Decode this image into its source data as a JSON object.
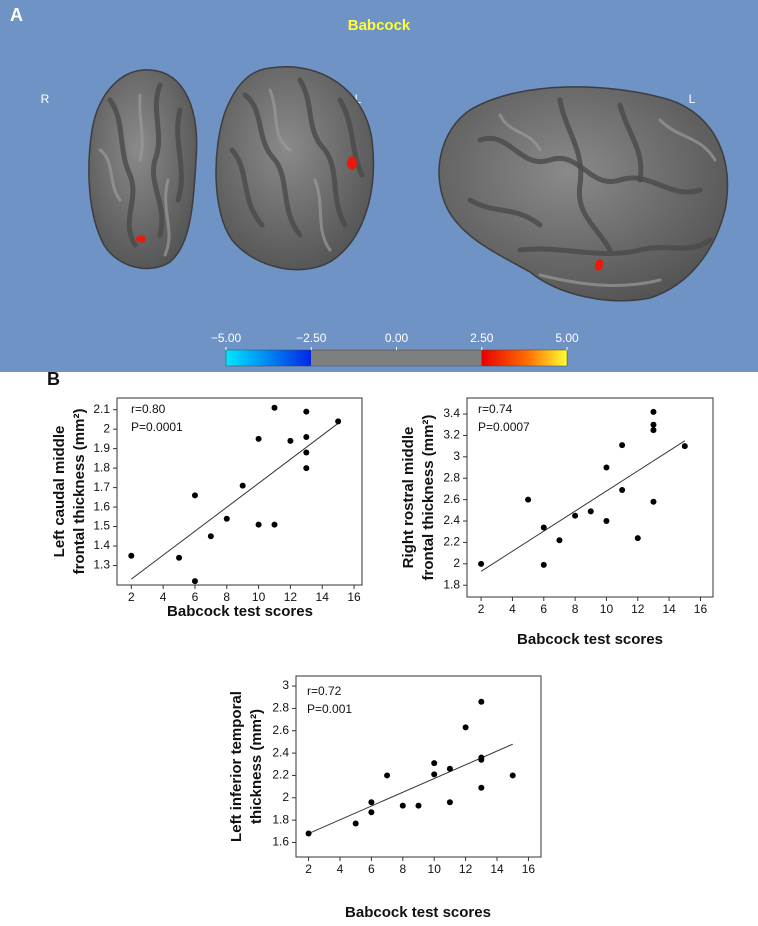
{
  "panel_a": {
    "label": "A",
    "title": "Babcock",
    "hemisphere_labels": [
      "R",
      "L",
      "L"
    ],
    "colorbar": {
      "ticks": [
        {
          "value": -5,
          "label": "−5.00"
        },
        {
          "value": -2.5,
          "label": "−2.50"
        },
        {
          "value": 0,
          "label": "0.00"
        },
        {
          "value": 2.5,
          "label": "2.50"
        },
        {
          "value": 5,
          "label": "5.00"
        }
      ]
    }
  },
  "panel_b": {
    "label": "B"
  },
  "chart_data": [
    {
      "type": "scatter",
      "xlabel": "Babcock test scores",
      "ylabel": [
        "Left caudal middle",
        "frontal thickness (mm²)"
      ],
      "annotations": [
        "r=0.80",
        "P=0.0001"
      ],
      "color": "#000000",
      "x": [
        2,
        5,
        6,
        6,
        7,
        8,
        9,
        10,
        10,
        11,
        11,
        12,
        13,
        13,
        13,
        13,
        15
      ],
      "y": [
        1.35,
        1.34,
        1.66,
        1.22,
        1.45,
        1.54,
        1.71,
        1.95,
        1.51,
        2.11,
        1.51,
        1.94,
        2.09,
        1.96,
        1.88,
        1.8,
        2.04
      ],
      "fit_line": {
        "x": [
          2,
          15
        ],
        "y": [
          1.23,
          2.03
        ]
      },
      "xlim": [
        1.1,
        16.5
      ],
      "ylim": [
        1.2,
        2.16
      ],
      "xticks": [
        2,
        4,
        6,
        8,
        10,
        12,
        14,
        16
      ],
      "yticks": [
        1.3,
        1.4,
        1.5,
        1.6,
        1.7,
        1.8,
        1.9,
        2,
        2.1
      ]
    },
    {
      "type": "scatter",
      "xlabel": "Babcock test scores",
      "ylabel": [
        "Right rostral middle",
        "frontal thickness (mm²)"
      ],
      "annotations": [
        "r=0.74",
        "P=0.0007"
      ],
      "color": "#000000",
      "x": [
        2,
        5,
        6,
        6,
        7,
        8,
        9,
        10,
        10,
        11,
        11,
        12,
        13,
        13,
        13,
        13,
        15
      ],
      "y": [
        2.0,
        2.6,
        2.34,
        1.99,
        2.22,
        2.45,
        2.49,
        2.9,
        2.4,
        3.11,
        2.69,
        2.24,
        3.42,
        3.3,
        3.25,
        2.58,
        3.1
      ],
      "fit_line": {
        "x": [
          2,
          15
        ],
        "y": [
          1.93,
          3.15
        ]
      },
      "xlim": [
        1.1,
        16.8
      ],
      "ylim": [
        1.69,
        3.55
      ],
      "xticks": [
        2,
        4,
        6,
        8,
        10,
        12,
        14,
        16
      ],
      "yticks": [
        1.8,
        2,
        2.2,
        2.4,
        2.6,
        2.8,
        3,
        3.2,
        3.4
      ]
    },
    {
      "type": "scatter",
      "xlabel": "Babcock test scores",
      "ylabel": [
        "Left inferior temporal",
        "thickness (mm²)"
      ],
      "annotations": [
        "r=0.72",
        "P=0.001"
      ],
      "color": "#000000",
      "x": [
        2,
        5,
        6,
        6,
        7,
        8,
        9,
        10,
        10,
        11,
        11,
        12,
        13,
        13,
        13,
        13,
        15
      ],
      "y": [
        1.68,
        1.77,
        1.96,
        1.87,
        2.2,
        1.93,
        1.93,
        2.31,
        2.21,
        2.26,
        1.96,
        2.63,
        2.86,
        2.36,
        2.34,
        2.09,
        2.2
      ],
      "fit_line": {
        "x": [
          2,
          15
        ],
        "y": [
          1.68,
          2.48
        ]
      },
      "xlim": [
        1.2,
        16.8
      ],
      "ylim": [
        1.47,
        3.09
      ],
      "xticks": [
        2,
        4,
        6,
        8,
        10,
        12,
        14,
        16
      ],
      "yticks": [
        1.6,
        1.8,
        2,
        2.2,
        2.4,
        2.6,
        2.8,
        3
      ]
    }
  ]
}
